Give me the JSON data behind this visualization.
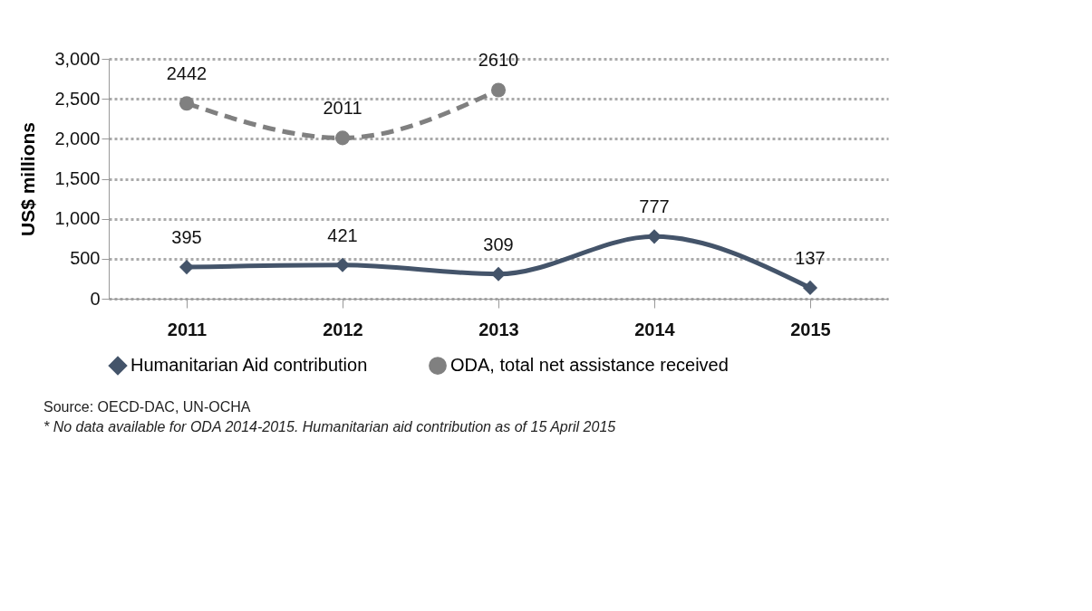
{
  "chart_data": {
    "type": "line",
    "ylabel": "US$ millions",
    "categories": [
      "2011",
      "2012",
      "2013",
      "2014",
      "2015"
    ],
    "series": [
      {
        "name": "Humanitarian Aid contribution",
        "color": "#44546a",
        "values": [
          395,
          421,
          309,
          777,
          137
        ],
        "marker": "diamond",
        "line_style": "solid"
      },
      {
        "name": "ODA, total net assistance received",
        "color": "#808080",
        "values": [
          2442,
          2011,
          2610,
          null,
          null
        ],
        "marker": "circle",
        "line_style": "dashed"
      }
    ],
    "ylim": [
      0,
      3000
    ],
    "yticks": [
      0,
      500,
      {
        "value": 1000,
        "label": "1,000"
      },
      {
        "value": 1500,
        "label": "1,500"
      },
      {
        "value": 2000,
        "label": "2,000"
      },
      {
        "value": 2500,
        "label": "2,500"
      },
      {
        "value": 3000,
        "label": "3,000"
      }
    ],
    "grid": "y",
    "legend": "bottom",
    "data_labels": true,
    "annotations": [
      "Source: OECD-DAC, UN-OCHA",
      "* No data available for ODA 2014-2015. Humanitarian aid contribution as of 15 April 2015"
    ]
  }
}
